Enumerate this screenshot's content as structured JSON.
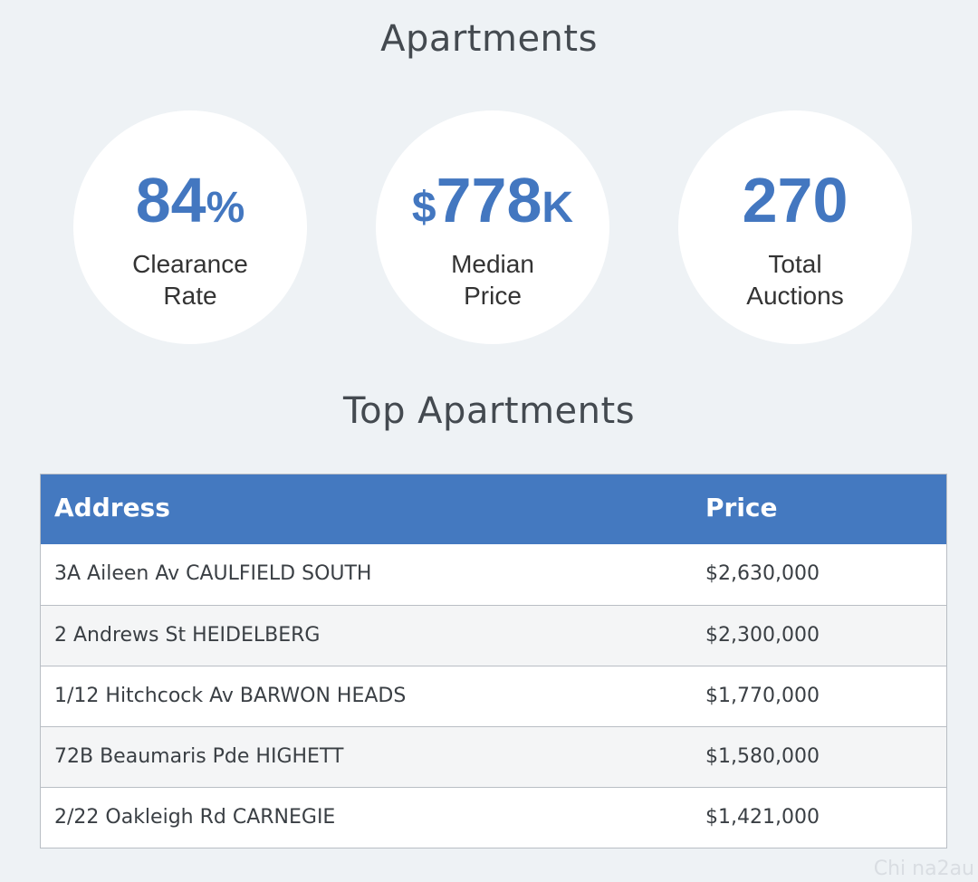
{
  "header": {
    "title": "Apartments"
  },
  "stats": {
    "clearance": {
      "value": "84",
      "suffix": "%",
      "label_line1": "Clearance",
      "label_line2": "Rate"
    },
    "median": {
      "prefix": "$",
      "value": "778",
      "suffix": "K",
      "label_line1": "Median",
      "label_line2": "Price"
    },
    "total": {
      "value": "270",
      "label_line1": "Total",
      "label_line2": "Auctions"
    }
  },
  "top": {
    "title": "Top Apartments",
    "columns": {
      "address": "Address",
      "price": "Price"
    },
    "rows": [
      {
        "address": "3A Aileen Av CAULFIELD SOUTH",
        "price": "$2,630,000"
      },
      {
        "address": "2 Andrews St HEIDELBERG",
        "price": "$2,300,000"
      },
      {
        "address": "1/12 Hitchcock Av BARWON HEADS",
        "price": "$1,770,000"
      },
      {
        "address": "72B Beaumaris Pde HIGHETT",
        "price": "$1,580,000"
      },
      {
        "address": "2/22 Oakleigh Rd CARNEGIE",
        "price": "$1,421,000"
      }
    ]
  },
  "watermark": "Chi na2au",
  "colors": {
    "accent": "#4377c0",
    "header_bg": "#4479c0",
    "page_bg": "#eef2f5"
  }
}
